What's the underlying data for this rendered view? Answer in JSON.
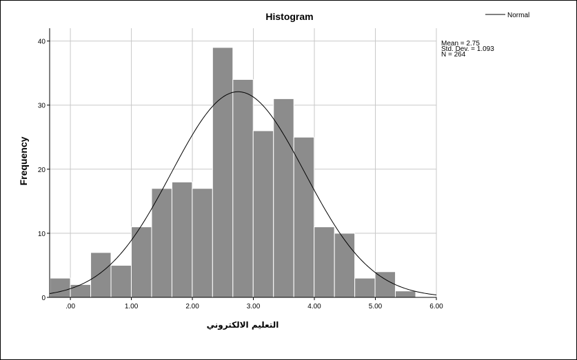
{
  "chart_data": {
    "type": "bar",
    "title": "Histogram",
    "xlabel": "التعليم الالكتروني",
    "ylabel": "Frequency",
    "xlim": [
      -0.34,
      6.0
    ],
    "ylim": [
      0,
      42
    ],
    "x_ticks": [
      ".00",
      "1.00",
      "2.00",
      "3.00",
      "4.00",
      "5.00",
      "6.00"
    ],
    "y_ticks": [
      "0",
      "10",
      "20",
      "30",
      "40"
    ],
    "bin_width": 0.333,
    "bin_start": -0.333,
    "values": [
      3,
      2,
      7,
      5,
      11,
      17,
      18,
      17,
      39,
      34,
      26,
      31,
      25,
      11,
      10,
      3,
      4,
      1
    ],
    "normal_curve": {
      "name": "Normal",
      "mean": 2.75,
      "sd": 1.093,
      "n": 264
    },
    "stats": [
      "Mean = 2.75",
      "Std. Dev. = 1.093",
      "N = 264"
    ],
    "grid": true,
    "legend": "top-right",
    "colors": {
      "bar": "#8c8c8c",
      "bar_edge": "#ffffff",
      "grid": "#c8c8c8",
      "curve": "#000000"
    }
  }
}
